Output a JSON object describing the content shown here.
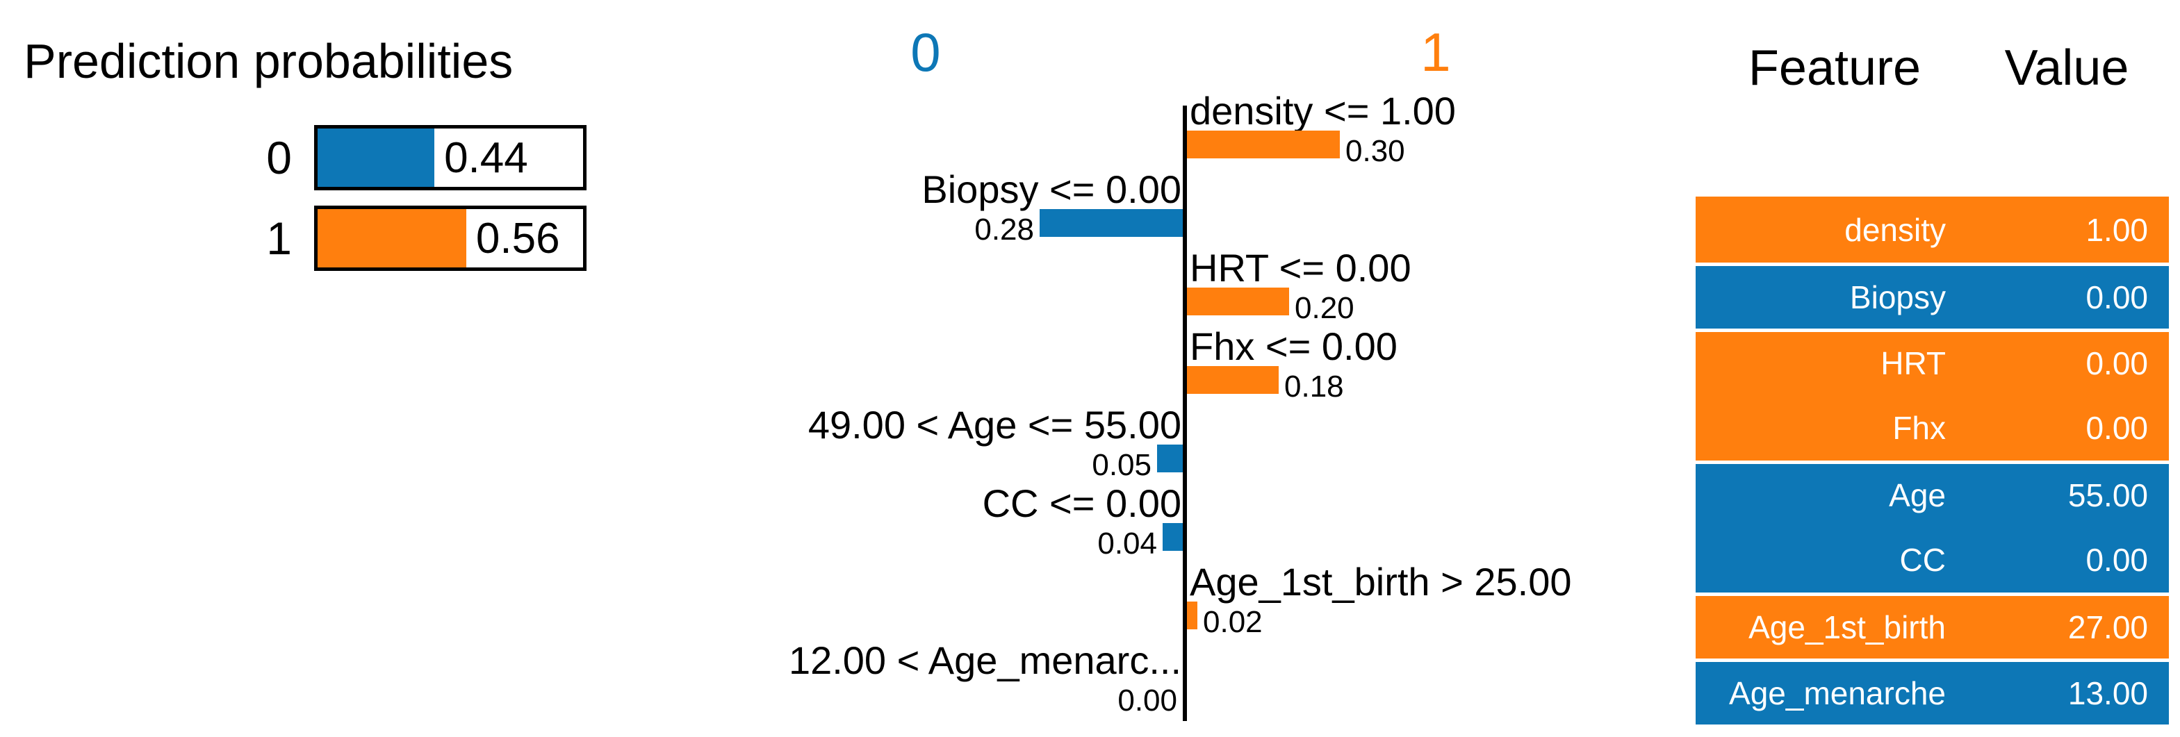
{
  "colors": {
    "blue": "#0d77b6",
    "orange": "#ff7f0e",
    "axis": "#000000",
    "text": "#000000",
    "background": "#ffffff"
  },
  "prediction_panel": {
    "title": "Prediction probabilities",
    "bars": [
      {
        "label": "0",
        "value": "0.44",
        "fraction": 0.44,
        "color": "blue"
      },
      {
        "label": "1",
        "value": "0.56",
        "fraction": 0.56,
        "color": "orange"
      }
    ]
  },
  "explanation_chart": {
    "legend": {
      "left": {
        "label": "0",
        "color": "blue"
      },
      "right": {
        "label": "1",
        "color": "orange"
      }
    },
    "rows": [
      {
        "label": "density <= 1.00",
        "value": "0.30",
        "weight": 0.3,
        "side": "right",
        "color": "orange"
      },
      {
        "label": "Biopsy <= 0.00",
        "value": "0.28",
        "weight": 0.28,
        "side": "left",
        "color": "blue"
      },
      {
        "label": "HRT <= 0.00",
        "value": "0.20",
        "weight": 0.2,
        "side": "right",
        "color": "orange"
      },
      {
        "label": "Fhx <= 0.00",
        "value": "0.18",
        "weight": 0.18,
        "side": "right",
        "color": "orange"
      },
      {
        "label": "49.00 < Age <= 55.00",
        "value": "0.05",
        "weight": 0.05,
        "side": "left",
        "color": "blue"
      },
      {
        "label": "CC <= 0.00",
        "value": "0.04",
        "weight": 0.04,
        "side": "left",
        "color": "blue"
      },
      {
        "label": "Age_1st_birth > 25.00",
        "value": "0.02",
        "weight": 0.02,
        "side": "right",
        "color": "orange"
      },
      {
        "label": "12.00 < Age_menarc...",
        "value": "0.00",
        "weight": 0.0,
        "side": "left",
        "color": "blue"
      }
    ]
  },
  "feature_table": {
    "headers": [
      "Feature",
      "Value"
    ],
    "rows": [
      {
        "feature": "density",
        "value": "1.00",
        "color": "orange"
      },
      {
        "feature": "Biopsy",
        "value": "0.00",
        "color": "blue"
      },
      {
        "feature": "HRT",
        "value": "0.00",
        "color": "orange"
      },
      {
        "feature": "Fhx",
        "value": "0.00",
        "color": "orange"
      },
      {
        "feature": "Age",
        "value": "55.00",
        "color": "blue"
      },
      {
        "feature": "CC",
        "value": "0.00",
        "color": "blue"
      },
      {
        "feature": "Age_1st_birth",
        "value": "27.00",
        "color": "orange"
      },
      {
        "feature": "Age_menarche",
        "value": "13.00",
        "color": "blue"
      }
    ]
  },
  "chart_data": [
    {
      "type": "bar",
      "title": "Prediction probabilities",
      "orientation": "horizontal",
      "categories": [
        "0",
        "1"
      ],
      "values": [
        0.44,
        0.56
      ],
      "colors": [
        "#0d77b6",
        "#ff7f0e"
      ],
      "xlim": [
        0,
        1
      ],
      "data_labels": [
        "0.44",
        "0.56"
      ]
    },
    {
      "type": "bar",
      "orientation": "horizontal",
      "legend_entries": [
        {
          "label": "0",
          "color": "#0d77b6",
          "position": "top-left"
        },
        {
          "label": "1",
          "color": "#ff7f0e",
          "position": "top-right"
        }
      ],
      "categories": [
        "density <= 1.00",
        "Biopsy <= 0.00",
        "HRT <= 0.00",
        "Fhx <= 0.00",
        "49.00 < Age <= 55.00",
        "CC <= 0.00",
        "Age_1st_birth > 25.00",
        "12.00 < Age_menarc..."
      ],
      "values": [
        0.3,
        -0.28,
        0.2,
        0.18,
        -0.05,
        -0.04,
        0.02,
        -0.0
      ],
      "data_labels": [
        "0.30",
        "0.28",
        "0.20",
        "0.18",
        "0.05",
        "0.04",
        "0.02",
        "0.00"
      ],
      "note": "positive values point toward class 1 (orange), negative toward class 0 (blue); center axis at 0",
      "grid": false
    },
    {
      "type": "table",
      "columns": [
        "Feature",
        "Value"
      ],
      "rows": [
        [
          "density",
          "1.00"
        ],
        [
          "Biopsy",
          "0.00"
        ],
        [
          "HRT",
          "0.00"
        ],
        [
          "Fhx",
          "0.00"
        ],
        [
          "Age",
          "55.00"
        ],
        [
          "CC",
          "0.00"
        ],
        [
          "Age_1st_birth",
          "27.00"
        ],
        [
          "Age_menarche",
          "13.00"
        ]
      ],
      "row_colors": [
        "#ff7f0e",
        "#0d77b6",
        "#ff7f0e",
        "#ff7f0e",
        "#0d77b6",
        "#0d77b6",
        "#ff7f0e",
        "#0d77b6"
      ]
    }
  ]
}
